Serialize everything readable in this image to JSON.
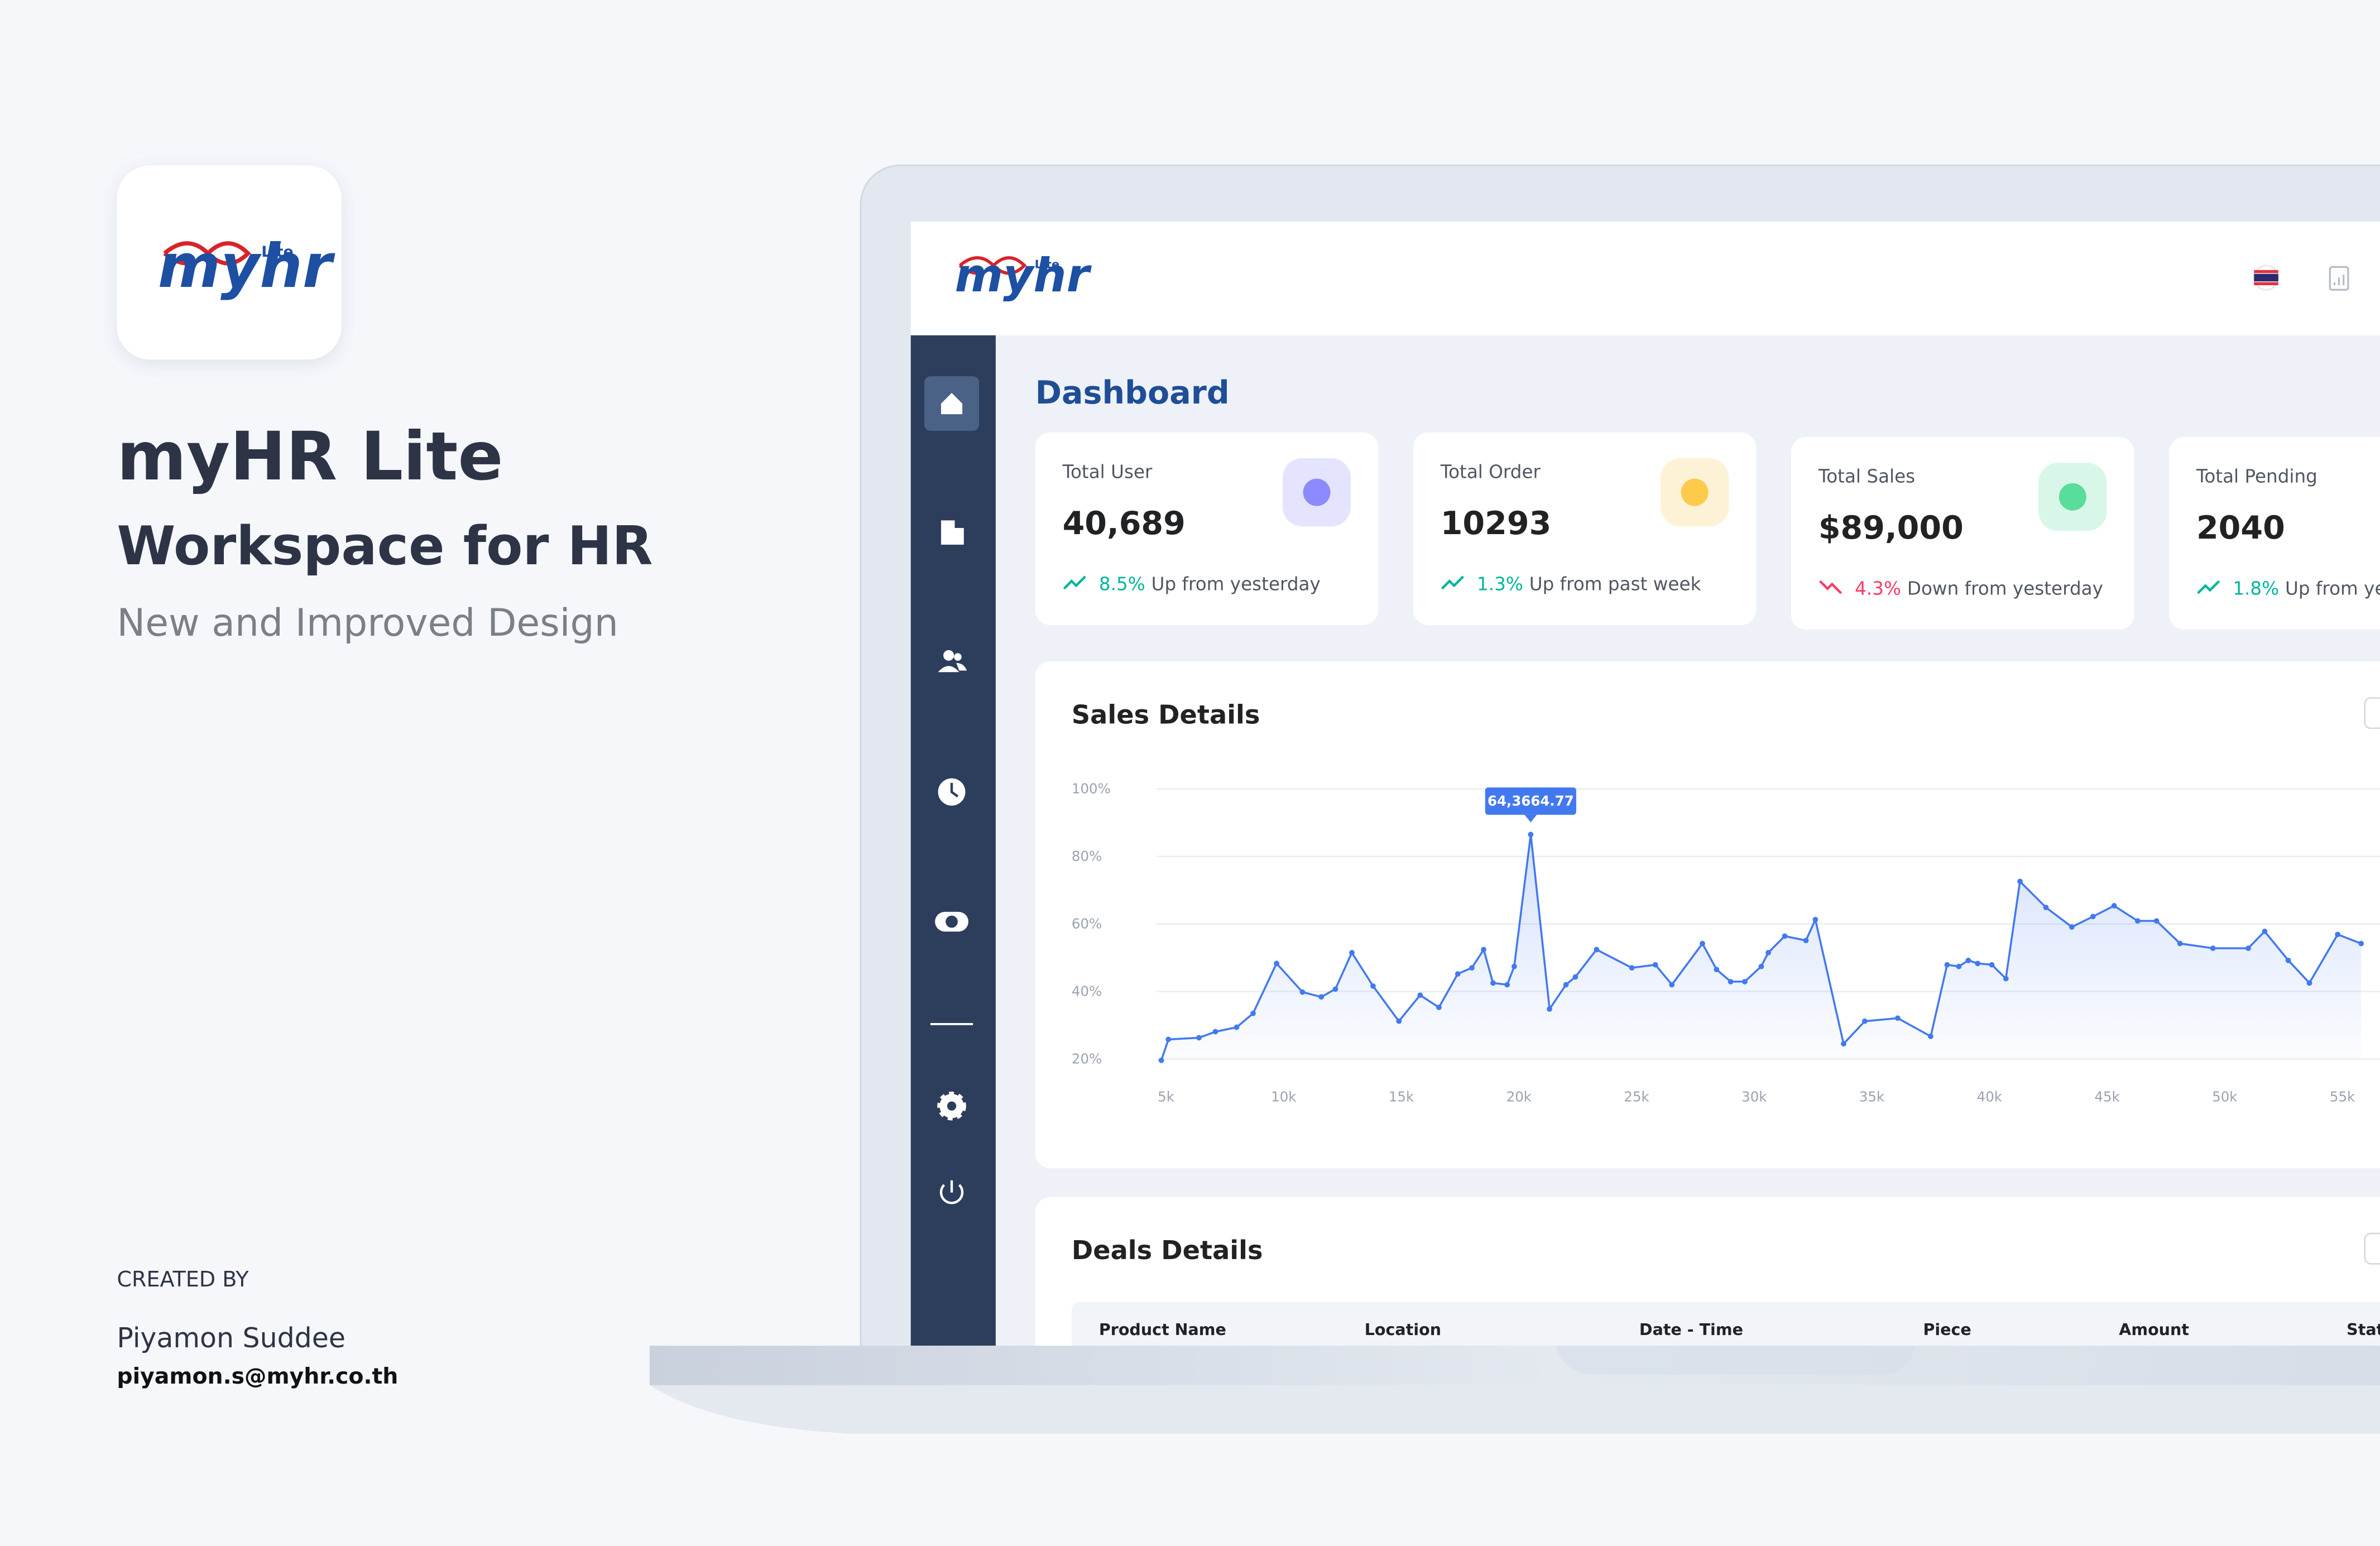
{
  "promo": {
    "title": "myHR Lite",
    "subtitle": "Workspace for HR",
    "tagline": "New and Improved Design",
    "credit_label": "CREATED BY",
    "author": "Piyamon Suddee",
    "email": "piyamon.s@myhr.co.th"
  },
  "app": {
    "logo_text": "myhr",
    "logo_badge": "Lite",
    "page_title": "Dashboard"
  },
  "stats": [
    {
      "label": "Total User",
      "value": "40,689",
      "change": "8.5%",
      "note": "Up from yesterday",
      "trend": "up"
    },
    {
      "label": "Total Order",
      "value": "10293",
      "change": "1.3%",
      "note": "Up from past week",
      "trend": "up"
    },
    {
      "label": "Total Sales",
      "value": "$89,000",
      "change": "4.3%",
      "note": "Down from yesterday",
      "trend": "down"
    },
    {
      "label": "Total Pending",
      "value": "2040",
      "change": "1.8%",
      "note": "Up from yesterday",
      "trend": "up"
    }
  ],
  "chart_data": {
    "type": "line",
    "title": "Sales Details",
    "x": [
      4800,
      5100,
      6400,
      7100,
      8000,
      8700,
      9700,
      10800,
      11600,
      12200,
      12900,
      13800,
      14900,
      15800,
      16600,
      17400,
      18000,
      18500,
      18900,
      19500,
      19800,
      20500,
      21300,
      22000,
      22400,
      23300,
      24800,
      25800,
      26500,
      27800,
      28400,
      29000,
      29600,
      30300,
      30600,
      31300,
      32200,
      32600,
      33800,
      34700,
      36100,
      37500,
      38200,
      38700,
      39100,
      39500,
      40100,
      40700,
      41300,
      42400,
      43500,
      44400,
      45300,
      46300,
      47100,
      48100,
      49500,
      51000,
      51700,
      52700,
      53600,
      54800,
      55800
    ],
    "values": [
      19.6,
      25.8,
      26.3,
      28.1,
      29.4,
      33.5,
      48.3,
      39.8,
      38.4,
      40.7,
      51.5,
      41.6,
      31.2,
      38.9,
      35.3,
      45.2,
      47.0,
      52.4,
      42.5,
      42.0,
      47.4,
      86.5,
      34.8,
      42.0,
      44.3,
      52.4,
      47.0,
      47.9,
      42.0,
      54.2,
      46.5,
      42.9,
      42.9,
      47.4,
      51.5,
      56.4,
      55.1,
      61.3,
      24.5,
      31.2,
      32.1,
      26.7,
      47.9,
      47.4,
      49.2,
      48.3,
      47.9,
      43.8,
      72.6,
      64.9,
      59.1,
      62.2,
      65.4,
      60.9,
      60.9,
      54.2,
      52.8,
      52.8,
      57.8,
      49.2,
      42.5,
      56.9,
      54.2
    ],
    "color": "#4379ee",
    "xlim": [
      4600,
      56600
    ],
    "ylim": [
      20,
      100
    ],
    "xticks": [
      {
        "value": 5000,
        "label": "5k"
      },
      {
        "value": 10000,
        "label": "10k"
      },
      {
        "value": 15000,
        "label": "15k"
      },
      {
        "value": 20000,
        "label": "20k"
      },
      {
        "value": 25000,
        "label": "25k"
      },
      {
        "value": 30000,
        "label": "30k"
      },
      {
        "value": 35000,
        "label": "35k"
      },
      {
        "value": 40000,
        "label": "40k"
      },
      {
        "value": 45000,
        "label": "45k"
      },
      {
        "value": 50000,
        "label": "50k"
      },
      {
        "value": 55000,
        "label": "55k"
      }
    ],
    "yticks": [
      {
        "value": 20,
        "label": "20%"
      },
      {
        "value": 40,
        "label": "40%"
      },
      {
        "value": 60,
        "label": "60%"
      },
      {
        "value": 80,
        "label": "80%"
      },
      {
        "value": 100,
        "label": "100%"
      }
    ],
    "grid": true,
    "annotations": [
      {
        "x": 20500,
        "y": 86.5,
        "text": "64,3664.77"
      }
    ]
  },
  "deals": {
    "title": "Deals Details",
    "columns": [
      "Product Name",
      "Location",
      "Date - Time",
      "Piece",
      "Amount",
      "Status"
    ]
  }
}
